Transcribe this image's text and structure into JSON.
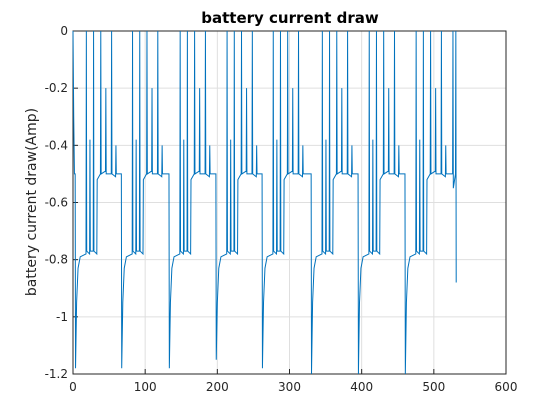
{
  "chart_data": {
    "type": "line",
    "title": "battery current draw",
    "y_label": "battery current draw(Amp)",
    "color": "#0072bd",
    "grid": true,
    "xlim": [
      0,
      600
    ],
    "xticks": [
      0,
      100,
      200,
      300,
      400,
      500,
      600
    ],
    "ylim": [
      -1.2,
      0
    ],
    "yticks": [
      0,
      -0.2,
      -0.4,
      -0.6,
      -0.8,
      -1,
      -1.2
    ],
    "x": [
      0,
      1,
      2,
      3,
      3.5,
      5,
      7,
      10,
      18,
      18.5,
      19,
      23,
      23.5,
      24,
      28,
      28.5,
      29,
      33,
      33.5,
      38,
      38.5,
      39,
      45,
      45.5,
      46,
      53,
      53.5,
      54,
      59,
      59.5,
      60,
      66,
      67,
      67.5,
      69,
      71,
      74,
      82,
      82.5,
      83,
      87,
      87.5,
      88,
      92,
      92.5,
      93,
      97,
      97.5,
      102,
      102.5,
      103,
      109,
      109.5,
      110,
      117,
      117.5,
      118,
      123,
      123.5,
      124,
      130,
      133,
      133.5,
      135,
      137,
      140,
      148,
      148.5,
      149,
      153,
      153.5,
      154,
      158,
      158.5,
      159,
      163,
      163.5,
      168,
      168.5,
      169,
      175,
      175.5,
      176,
      183,
      183.5,
      184,
      189,
      189.5,
      190,
      196,
      198,
      198.5,
      200,
      202,
      205,
      213,
      213.5,
      214,
      218,
      218.5,
      219,
      223,
      223.5,
      224,
      228,
      228.5,
      233,
      233.5,
      234,
      240,
      240.5,
      241,
      248,
      248.5,
      249,
      254,
      254.5,
      255,
      261,
      262,
      262.5,
      264,
      266,
      269,
      277,
      277.5,
      278,
      282,
      282.5,
      283,
      287,
      287.5,
      288,
      292,
      292.5,
      297,
      297.5,
      298,
      304,
      304.5,
      305,
      312,
      312.5,
      313,
      318,
      318.5,
      319,
      325,
      330,
      330.5,
      332,
      334,
      337,
      345,
      345.5,
      346,
      350,
      350.5,
      351,
      355,
      355.5,
      356,
      360,
      360.5,
      365,
      365.5,
      366,
      372,
      372.5,
      373,
      380,
      380.5,
      381,
      386,
      386.5,
      387,
      393,
      395,
      395.5,
      397,
      399,
      402,
      410,
      410.5,
      411,
      415,
      415.5,
      416,
      420,
      420.5,
      421,
      425,
      425.5,
      430,
      430.5,
      431,
      437,
      437.5,
      438,
      445,
      445.5,
      446,
      451,
      451.5,
      452,
      458,
      460,
      460.5,
      462,
      464,
      467,
      475,
      475.5,
      476,
      480,
      480.5,
      481,
      485,
      485.5,
      486,
      490,
      490.5,
      495,
      495.5,
      496,
      502,
      502.5,
      503,
      510,
      510.5,
      511,
      516,
      516.5,
      517,
      523,
      526,
      526.5,
      527,
      530,
      530.5,
      531
    ],
    "values": [
      0,
      -0.3,
      -0.5,
      -0.5,
      -1.18,
      -0.95,
      -0.83,
      -0.79,
      -0.78,
      0,
      -0.77,
      -0.78,
      -0.38,
      -0.77,
      -0.77,
      0,
      -0.77,
      -0.78,
      -0.52,
      -0.5,
      0,
      -0.5,
      -0.49,
      -0.2,
      -0.5,
      -0.5,
      0,
      -0.5,
      -0.51,
      -0.4,
      -0.5,
      -0.5,
      -0.5,
      -1.18,
      -0.95,
      -0.83,
      -0.79,
      -0.78,
      0,
      -0.77,
      -0.78,
      -0.38,
      -0.77,
      -0.77,
      0,
      -0.77,
      -0.78,
      -0.52,
      -0.5,
      0,
      -0.5,
      -0.49,
      -0.2,
      -0.5,
      -0.5,
      0,
      -0.5,
      -0.51,
      -0.4,
      -0.5,
      -0.5,
      -0.5,
      -1.18,
      -0.95,
      -0.83,
      -0.79,
      -0.78,
      0,
      -0.77,
      -0.78,
      -0.38,
      -0.77,
      -0.77,
      0,
      -0.77,
      -0.78,
      -0.52,
      -0.5,
      0,
      -0.5,
      -0.49,
      -0.2,
      -0.5,
      -0.5,
      0,
      -0.5,
      -0.51,
      -0.4,
      -0.5,
      -0.5,
      -0.5,
      -1.15,
      -0.95,
      -0.83,
      -0.79,
      -0.78,
      0,
      -0.77,
      -0.78,
      -0.38,
      -0.77,
      -0.77,
      0,
      -0.77,
      -0.78,
      -0.52,
      -0.5,
      0,
      -0.5,
      -0.49,
      -0.2,
      -0.5,
      -0.5,
      0,
      -0.5,
      -0.51,
      -0.4,
      -0.5,
      -0.5,
      -0.5,
      -1.18,
      -0.95,
      -0.83,
      -0.79,
      -0.78,
      0,
      -0.77,
      -0.78,
      -0.38,
      -0.77,
      -0.77,
      0,
      -0.77,
      -0.78,
      -0.52,
      -0.5,
      0,
      -0.5,
      -0.49,
      -0.2,
      -0.5,
      -0.5,
      0,
      -0.5,
      -0.51,
      -0.4,
      -0.5,
      -0.5,
      -0.5,
      -1.2,
      -0.95,
      -0.83,
      -0.79,
      -0.78,
      0,
      -0.77,
      -0.78,
      -0.38,
      -0.77,
      -0.77,
      0,
      -0.77,
      -0.78,
      -0.52,
      -0.5,
      0,
      -0.5,
      -0.49,
      -0.2,
      -0.5,
      -0.5,
      0,
      -0.5,
      -0.51,
      -0.4,
      -0.5,
      -0.5,
      -0.5,
      -1.2,
      -0.95,
      -0.83,
      -0.79,
      -0.78,
      0,
      -0.77,
      -0.78,
      -0.38,
      -0.77,
      -0.77,
      0,
      -0.77,
      -0.78,
      -0.52,
      -0.5,
      0,
      -0.5,
      -0.49,
      -0.2,
      -0.5,
      -0.5,
      0,
      -0.5,
      -0.51,
      -0.4,
      -0.5,
      -0.5,
      -0.5,
      -1.2,
      -0.95,
      -0.83,
      -0.79,
      -0.78,
      0,
      -0.77,
      -0.78,
      -0.38,
      -0.77,
      -0.77,
      0,
      -0.77,
      -0.78,
      -0.52,
      -0.5,
      0,
      -0.5,
      -0.49,
      -0.2,
      -0.5,
      -0.5,
      0,
      -0.5,
      -0.51,
      -0.4,
      -0.5,
      -0.5,
      -0.5,
      0,
      -0.55,
      -0.5,
      0,
      -0.88
    ]
  }
}
